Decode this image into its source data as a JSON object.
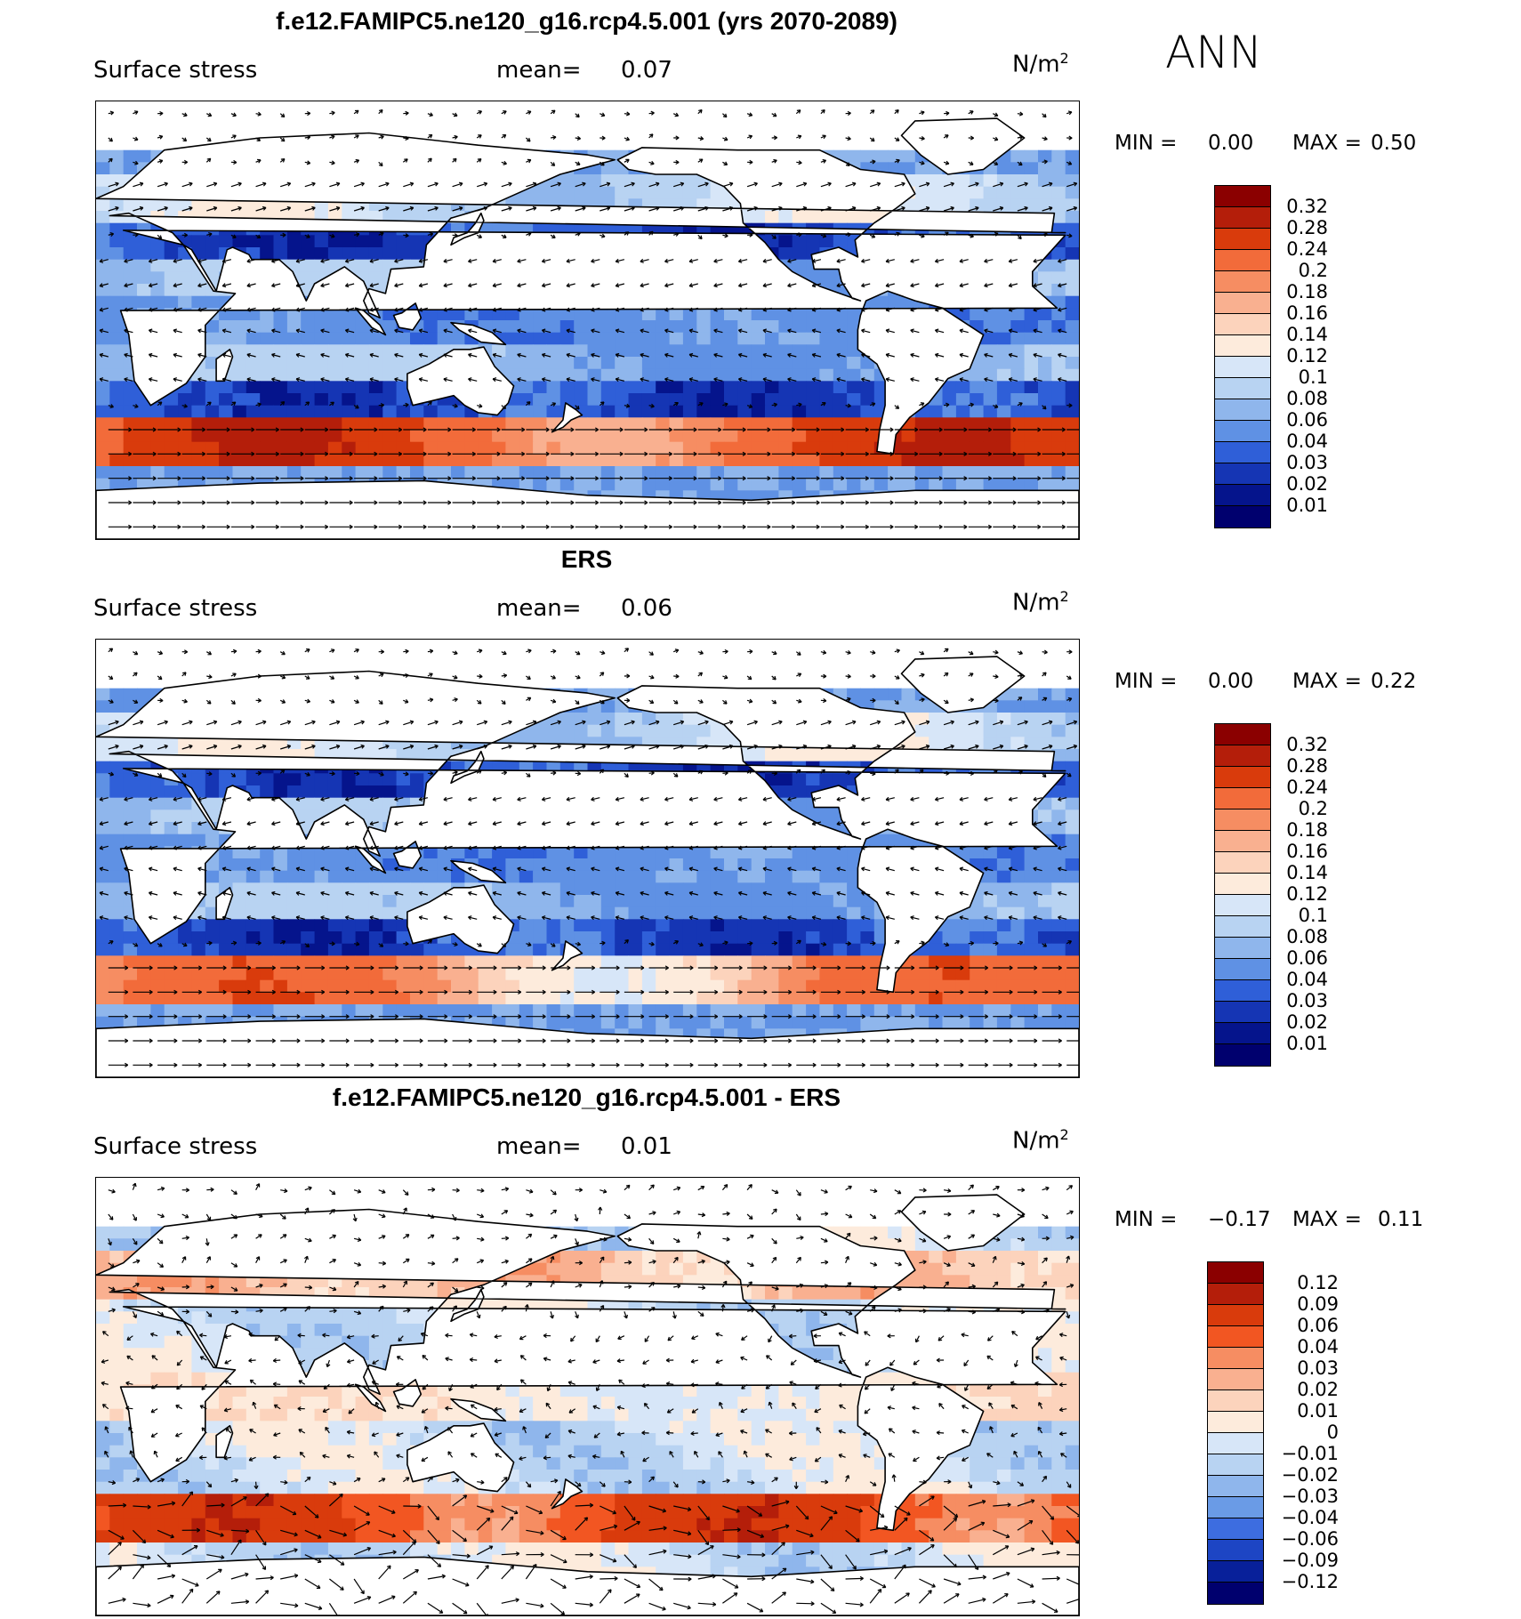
{
  "season": "ANN",
  "panels": [
    {
      "id": "model",
      "title": "f.e12.FAMIPC5.ne120_g16.rcp4.5.001 (yrs 2070-2089)",
      "variable": "Surface stress",
      "mean_label": "mean=",
      "mean_value": "0.07",
      "units_base": "N/m",
      "units_exp": "2",
      "minmax": {
        "min_label": "MIN =",
        "min": "0.00",
        "max_label": "MAX =",
        "max": "0.50"
      },
      "colorbar_labels": [
        "0.32",
        "0.28",
        "0.24",
        "0.2",
        "0.18",
        "0.16",
        "0.14",
        "0.12",
        "0.1",
        "0.08",
        "0.06",
        "0.04",
        "0.03",
        "0.02",
        "0.01"
      ]
    },
    {
      "id": "obs",
      "title": "ERS",
      "variable": "Surface stress",
      "mean_label": "mean=",
      "mean_value": "0.06",
      "units_base": "N/m",
      "units_exp": "2",
      "minmax": {
        "min_label": "MIN =",
        "min": "0.00",
        "max_label": "MAX =",
        "max": "0.22"
      },
      "colorbar_labels": [
        "0.32",
        "0.28",
        "0.24",
        "0.2",
        "0.18",
        "0.16",
        "0.14",
        "0.12",
        "0.1",
        "0.08",
        "0.06",
        "0.04",
        "0.03",
        "0.02",
        "0.01"
      ]
    },
    {
      "id": "diff",
      "title": "f.e12.FAMIPC5.ne120_g16.rcp4.5.001 - ERS",
      "variable": "Surface stress",
      "mean_label": "mean=",
      "mean_value": "0.01",
      "units_base": "N/m",
      "units_exp": "2",
      "minmax": {
        "min_label": "MIN =",
        "min": "−0.17",
        "max_label": "MAX =",
        "max": "0.11"
      },
      "colorbar_labels": [
        "0.12",
        "0.09",
        "0.06",
        "0.04",
        "0.03",
        "0.02",
        "0.01",
        "0",
        "−0.01",
        "−0.02",
        "−0.03",
        "−0.04",
        "−0.06",
        "−0.09",
        "−0.12"
      ]
    }
  ],
  "colormaps": {
    "sequential": [
      "#8b0000",
      "#b41e0a",
      "#d93b0c",
      "#f26b3a",
      "#f68d62",
      "#f9b090",
      "#fcd3bc",
      "#fdebdc",
      "#d7e6f8",
      "#b8d3f2",
      "#8fb6ec",
      "#5f91e4",
      "#2f5fd8",
      "#1535b4",
      "#05148c",
      "#00006e"
    ],
    "diverging": [
      "#8b0000",
      "#b41e0a",
      "#d93b0c",
      "#f25622",
      "#f68d62",
      "#f9b090",
      "#fcd3bc",
      "#fdebdc",
      "#d7e6f8",
      "#b8d3f2",
      "#8fb6ec",
      "#6a9be6",
      "#3d6de0",
      "#1d45c4",
      "#08209a",
      "#00006e"
    ]
  }
}
